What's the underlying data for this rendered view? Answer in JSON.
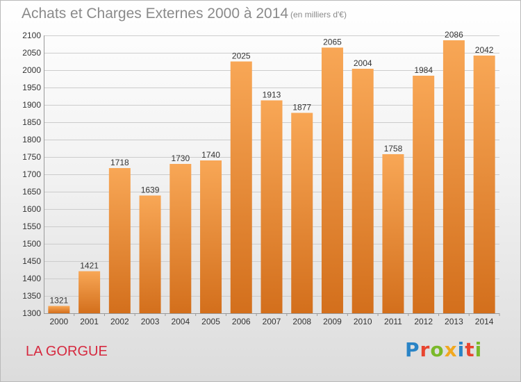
{
  "header": {
    "title": "Achats et Charges Externes 2000 à 2014",
    "unit": "(en milliers d'€)"
  },
  "footer": {
    "commune": "LA GORGUE",
    "logo": {
      "text": "Proxiti",
      "letter_colors": [
        "#2a84c6",
        "#e8442f",
        "#7ab929",
        "#f1a81f",
        "#2a84c6",
        "#e8442f",
        "#7ab929"
      ]
    }
  },
  "colors": {
    "bar_light": "#f8a756",
    "bar_dark": "#d36f1c",
    "grid": "#cccccc",
    "axis_text": "#333333"
  },
  "chart_data": {
    "type": "bar",
    "title": "Achats et Charges Externes 2000 à 2014",
    "subtitle": "(en milliers d'€)",
    "categories": [
      "2000",
      "2001",
      "2002",
      "2003",
      "2004",
      "2005",
      "2006",
      "2007",
      "2008",
      "2009",
      "2010",
      "2011",
      "2012",
      "2013",
      "2014"
    ],
    "values": [
      1321,
      1421,
      1718,
      1639,
      1730,
      1740,
      2025,
      1913,
      1877,
      2065,
      2004,
      1758,
      1984,
      2086,
      2042
    ],
    "ylim": [
      1300,
      2100
    ],
    "yticks": [
      1300,
      1350,
      1400,
      1450,
      1500,
      1550,
      1600,
      1650,
      1700,
      1750,
      1800,
      1850,
      1900,
      1950,
      2000,
      2050,
      2100
    ],
    "grid": true,
    "data_labels": true,
    "xlabel": "",
    "ylabel": ""
  }
}
